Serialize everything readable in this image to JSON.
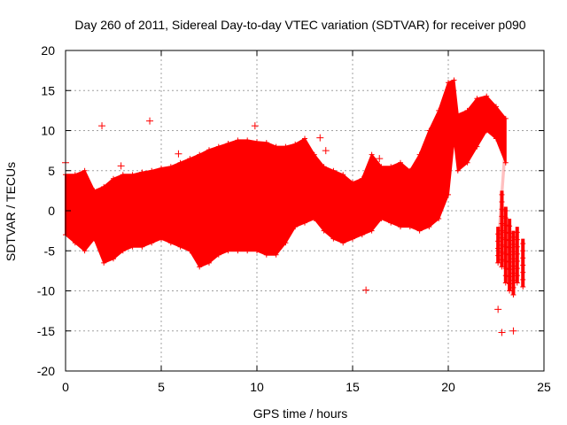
{
  "chart_data": {
    "type": "scatter",
    "title": "Day 260 of 2011, Sidereal Day-to-day VTEC variation (SDTVAR) for receiver p090",
    "xlabel": "GPS time / hours",
    "ylabel": "SDTVAR / TECUs",
    "xlim": [
      0,
      25
    ],
    "ylim": [
      -20,
      20
    ],
    "xticks": [
      0,
      5,
      10,
      15,
      20,
      25
    ],
    "yticks": [
      -20,
      -15,
      -10,
      -5,
      0,
      5,
      10,
      15,
      20
    ],
    "grid": true,
    "marker": "+",
    "color": "#ff0000",
    "series": [
      {
        "name": "p090",
        "envelope": {
          "description": "dense band of points, per-time min/max",
          "x": [
            0.0,
            0.5,
            1.0,
            1.5,
            2.0,
            2.5,
            3.0,
            3.5,
            4.0,
            4.5,
            5.0,
            5.5,
            6.0,
            6.5,
            7.0,
            7.5,
            8.0,
            8.5,
            9.0,
            9.5,
            10.0,
            10.5,
            11.0,
            11.5,
            12.0,
            12.5,
            13.0,
            13.5,
            14.0,
            14.5,
            15.0,
            15.5,
            16.0,
            16.5,
            17.0,
            17.5,
            18.0,
            18.5,
            19.0,
            19.5,
            20.0,
            20.3,
            20.5,
            21.0,
            21.5,
            22.0,
            22.5,
            23.0
          ],
          "upper": [
            4.5,
            4.5,
            5.0,
            2.5,
            3.0,
            4.0,
            4.5,
            4.5,
            4.8,
            5.0,
            5.3,
            5.5,
            6.0,
            6.5,
            7.0,
            7.6,
            8.0,
            8.4,
            8.8,
            8.8,
            8.6,
            8.5,
            8.0,
            8.0,
            8.3,
            9.0,
            7.0,
            5.5,
            5.0,
            4.5,
            3.5,
            4.0,
            7.0,
            5.5,
            5.5,
            6.0,
            5.0,
            7.0,
            10.0,
            12.5,
            16.0,
            16.3,
            12.0,
            12.5,
            14.0,
            14.3,
            13.0,
            11.5
          ],
          "lower": [
            -3.0,
            -4.0,
            -5.0,
            -3.5,
            -6.5,
            -6.0,
            -5.0,
            -4.5,
            -4.5,
            -4.0,
            -3.5,
            -4.0,
            -4.5,
            -5.0,
            -7.0,
            -6.5,
            -5.5,
            -5.0,
            -5.0,
            -5.0,
            -5.0,
            -5.5,
            -5.5,
            -4.0,
            -2.0,
            -1.5,
            -1.0,
            -2.5,
            -3.5,
            -4.0,
            -3.5,
            -3.0,
            -2.5,
            -1.0,
            -1.5,
            -2.0,
            -2.0,
            -2.5,
            -2.0,
            -1.0,
            2.0,
            9.0,
            5.0,
            6.0,
            8.0,
            10.0,
            9.0,
            6.0
          ]
        },
        "end_cluster": {
          "description": "sparse scattered cluster near end of day",
          "x": [
            22.6,
            22.8,
            23.0,
            23.2,
            23.4,
            23.6,
            23.9
          ],
          "upper": [
            -2.0,
            2.5,
            0.5,
            -1.0,
            -2.5,
            -2.0,
            -3.5
          ],
          "lower": [
            -6.5,
            -7.0,
            -9.0,
            -10.0,
            -10.5,
            -9.0,
            -9.5
          ]
        },
        "outliers": [
          {
            "x": 0.0,
            "y": 6.0
          },
          {
            "x": 1.9,
            "y": 10.6
          },
          {
            "x": 2.9,
            "y": 5.6
          },
          {
            "x": 4.4,
            "y": 11.2
          },
          {
            "x": 5.9,
            "y": 7.1
          },
          {
            "x": 9.9,
            "y": 10.6
          },
          {
            "x": 13.3,
            "y": 9.1
          },
          {
            "x": 13.6,
            "y": 7.5
          },
          {
            "x": 15.7,
            "y": -9.9
          },
          {
            "x": 16.4,
            "y": 6.5
          },
          {
            "x": 22.6,
            "y": -12.3
          },
          {
            "x": 22.8,
            "y": -15.2
          },
          {
            "x": 23.4,
            "y": -15.0
          }
        ]
      }
    ]
  }
}
